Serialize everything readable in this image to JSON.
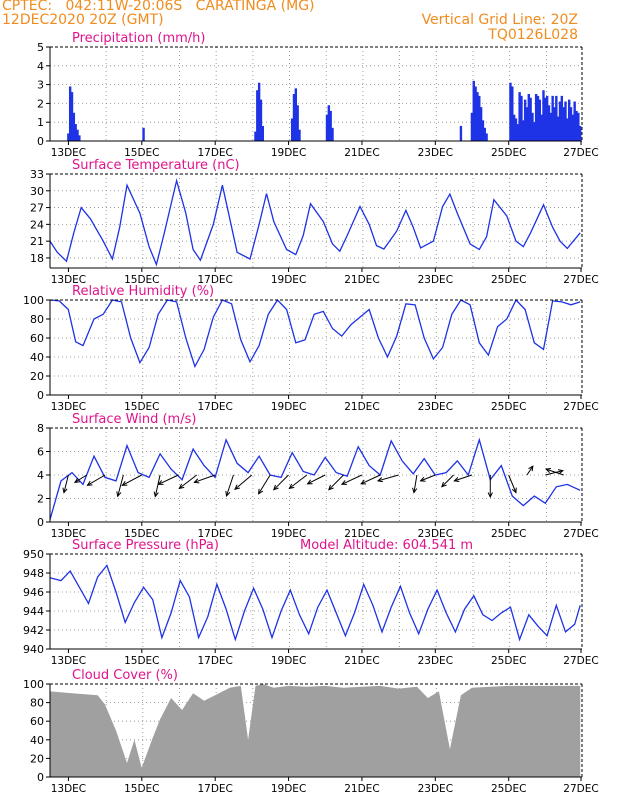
{
  "header": {
    "station_line": "CPTEC:   042:11W-20:06S   CARATINGA (MG)",
    "date_line": "12DEC2020 20Z (GMT)",
    "grid_note": "Vertical Grid Line: 20Z",
    "run_code": "TQ0126L028"
  },
  "colors": {
    "header_text": "#f08c1e",
    "panel_title": "#e0148c",
    "series": "#1e32e6",
    "cloud_fill": "#a0a0a0",
    "wind_arrow": "#000000"
  },
  "x_axis": {
    "ticks": [
      "13DEC",
      "15DEC",
      "17DEC",
      "19DEC",
      "21DEC",
      "23DEC",
      "25DEC",
      "27DEC"
    ],
    "start_label": "12DEC 20Z",
    "span_days": 14.5
  },
  "chart_data": [
    {
      "id": "precip",
      "type": "bar",
      "title": "Precipitation (mm/h)",
      "ylim": [
        0,
        5
      ],
      "yticks": [
        0,
        1,
        2,
        3,
        4,
        5
      ],
      "grid": true,
      "x": [
        0.5,
        0.55,
        0.6,
        0.65,
        0.7,
        0.75,
        0.8,
        2.55,
        5.6,
        5.65,
        5.7,
        5.75,
        5.8,
        6.6,
        6.65,
        6.7,
        6.75,
        6.8,
        7.55,
        7.6,
        7.65,
        7.7,
        11.2,
        11.5,
        11.55,
        11.6,
        11.65,
        11.7,
        11.75,
        11.8,
        11.85,
        11.9,
        12.55,
        12.6,
        12.65,
        12.7,
        12.75,
        12.8,
        12.85,
        12.9,
        12.95,
        13.0,
        13.05,
        13.1,
        13.15,
        13.2,
        13.25,
        13.3,
        13.35,
        13.4,
        13.45,
        13.5,
        13.55,
        13.6,
        13.65,
        13.7,
        13.75,
        13.8,
        13.85,
        13.9,
        13.95,
        14.0,
        14.05,
        14.1,
        14.15,
        14.2,
        14.25,
        14.3,
        14.35,
        14.4,
        14.45
      ],
      "values": [
        0.4,
        2.9,
        2.6,
        1.5,
        0.9,
        0.6,
        0.3,
        0.7,
        0.5,
        2.7,
        3.1,
        2.2,
        0.8,
        1.2,
        2.5,
        2.8,
        1.9,
        0.6,
        1.4,
        1.9,
        1.6,
        0.7,
        0.8,
        1.5,
        3.2,
        2.9,
        2.6,
        2.4,
        1.8,
        1.1,
        0.7,
        0.4,
        3.1,
        2.9,
        1.4,
        1.2,
        0.9,
        2.6,
        2.4,
        1.1,
        2.2,
        1.8,
        2.5,
        2.3,
        1.5,
        1.0,
        2.5,
        2.4,
        2.2,
        1.4,
        2.7,
        2.3,
        2.4,
        1.9,
        1.5,
        2.4,
        1.8,
        2.4,
        1.3,
        2.1,
        2.4,
        1.8,
        2.1,
        1.2,
        2.2,
        1.8,
        1.4,
        2.1,
        1.6,
        1.5,
        0.8
      ]
    },
    {
      "id": "temp",
      "type": "line",
      "title": "Surface Temperature (nC)",
      "ylim": [
        16.2,
        33
      ],
      "yticks": [
        18,
        21,
        24,
        27,
        30,
        33
      ],
      "grid": true,
      "x": [
        0,
        0.2,
        0.45,
        0.65,
        0.85,
        1.1,
        1.45,
        1.7,
        1.9,
        2.1,
        2.45,
        2.7,
        2.9,
        3.1,
        3.45,
        3.7,
        3.9,
        4.1,
        4.45,
        4.7,
        4.9,
        5.1,
        5.45,
        5.7,
        5.9,
        6.1,
        6.45,
        6.7,
        6.9,
        7.1,
        7.45,
        7.7,
        7.9,
        8.1,
        8.45,
        8.7,
        8.9,
        9.1,
        9.45,
        9.7,
        9.9,
        10.1,
        10.45,
        10.7,
        10.9,
        11.1,
        11.45,
        11.7,
        11.9,
        12.1,
        12.45,
        12.7,
        12.9,
        13.1,
        13.45,
        13.7,
        13.9,
        14.1,
        14.45
      ],
      "values": [
        21.0,
        19.0,
        17.4,
        22.5,
        27.0,
        25.0,
        21.0,
        17.8,
        23.5,
        31.0,
        26.0,
        20.0,
        16.8,
        22.0,
        31.8,
        26.0,
        19.5,
        17.6,
        24.0,
        31.0,
        25.0,
        19.0,
        17.8,
        24.0,
        29.5,
        24.5,
        19.5,
        18.6,
        22.0,
        27.7,
        24.5,
        20.5,
        19.2,
        22.0,
        27.2,
        24.0,
        20.2,
        19.6,
        22.8,
        26.5,
        23.5,
        19.8,
        21.0,
        27.2,
        29.4,
        26.0,
        20.5,
        19.5,
        21.8,
        28.4,
        25.5,
        21.0,
        20.0,
        22.5,
        27.5,
        23.5,
        21.0,
        19.7,
        22.5
      ]
    },
    {
      "id": "rh",
      "type": "line",
      "title": "Relative Humidity (%)",
      "ylim": [
        0,
        100
      ],
      "yticks": [
        0,
        20,
        40,
        60,
        80,
        100
      ],
      "grid": true,
      "x": [
        0,
        0.25,
        0.5,
        0.7,
        0.9,
        1.2,
        1.45,
        1.7,
        1.95,
        2.2,
        2.45,
        2.7,
        2.95,
        3.2,
        3.45,
        3.7,
        3.95,
        4.2,
        4.45,
        4.7,
        4.95,
        5.2,
        5.45,
        5.7,
        5.95,
        6.2,
        6.45,
        6.7,
        6.95,
        7.2,
        7.45,
        7.7,
        7.95,
        8.2,
        8.45,
        8.7,
        8.95,
        9.2,
        9.45,
        9.7,
        9.95,
        10.2,
        10.45,
        10.7,
        10.95,
        11.2,
        11.45,
        11.7,
        11.95,
        12.2,
        12.45,
        12.7,
        12.95,
        13.2,
        13.45,
        13.7,
        13.95,
        14.2,
        14.45
      ],
      "values": [
        100,
        99,
        90,
        56,
        52,
        80,
        85,
        100,
        98,
        60,
        34,
        50,
        85,
        100,
        98,
        60,
        30,
        48,
        82,
        100,
        96,
        58,
        35,
        52,
        85,
        100,
        90,
        55,
        58,
        85,
        88,
        70,
        62,
        74,
        82,
        90,
        60,
        40,
        62,
        96,
        95,
        60,
        38,
        50,
        85,
        100,
        95,
        55,
        42,
        72,
        80,
        100,
        90,
        55,
        48,
        99,
        98,
        95,
        98
      ]
    },
    {
      "id": "wind",
      "type": "line",
      "title": "Surface Wind (m/s)",
      "ylim": [
        0,
        8
      ],
      "yticks": [
        0,
        2,
        4,
        6,
        8
      ],
      "grid": true,
      "x": [
        0,
        0.3,
        0.6,
        0.9,
        1.2,
        1.5,
        1.8,
        2.1,
        2.4,
        2.7,
        3.0,
        3.3,
        3.6,
        3.9,
        4.2,
        4.5,
        4.8,
        5.1,
        5.4,
        5.7,
        6.0,
        6.3,
        6.6,
        6.9,
        7.2,
        7.5,
        7.8,
        8.1,
        8.4,
        8.7,
        9.0,
        9.3,
        9.6,
        9.9,
        10.2,
        10.5,
        10.8,
        11.1,
        11.4,
        11.7,
        12.0,
        12.3,
        12.6,
        12.9,
        13.2,
        13.5,
        13.8,
        14.1,
        14.45
      ],
      "values": [
        0.2,
        3.5,
        4.2,
        3.2,
        5.6,
        3.8,
        3.5,
        6.5,
        4.2,
        3.8,
        5.8,
        4.5,
        3.6,
        6.2,
        4.8,
        3.8,
        7.0,
        5.0,
        4.2,
        5.6,
        4.0,
        3.8,
        5.9,
        4.3,
        4.0,
        5.5,
        4.2,
        3.9,
        6.4,
        4.8,
        4.0,
        6.9,
        5.2,
        4.1,
        5.4,
        4.0,
        4.2,
        5.2,
        4.0,
        7.0,
        3.6,
        4.8,
        2.2,
        1.4,
        2.2,
        1.6,
        3.0,
        3.2,
        2.7
      ],
      "arrows": {
        "x": [
          0.5,
          1.0,
          1.5,
          2.0,
          2.5,
          3.0,
          3.5,
          4.0,
          4.5,
          5.0,
          5.5,
          6.0,
          6.5,
          7.0,
          7.5,
          8.0,
          8.5,
          9.0,
          9.5,
          10.0,
          10.5,
          11.0,
          11.5,
          12.0,
          12.5,
          13.0,
          13.5,
          14.0
        ],
        "y": [
          4.0,
          4.0,
          4.0,
          4.0,
          4.0,
          4.0,
          4.0,
          4.0,
          4.0,
          4.0,
          4.0,
          4.0,
          4.0,
          4.0,
          4.0,
          4.0,
          4.0,
          4.0,
          4.0,
          4.0,
          4.0,
          4.0,
          4.0,
          4.0,
          4.0,
          4.0,
          4.0,
          4.0
        ],
        "u": [
          -0.3,
          -0.8,
          -1.2,
          -0.4,
          -1.5,
          -0.4,
          -1.5,
          -1.3,
          -1.7,
          -0.5,
          -1.3,
          -0.8,
          -1.0,
          -1.3,
          -1.2,
          -1.0,
          -1.5,
          -1.3,
          -1.4,
          -0.2,
          -1.0,
          -0.8,
          -1.2,
          0,
          0.5,
          0.4,
          1.2,
          -1.2
        ],
        "v": [
          -1.2,
          -0.5,
          -0.7,
          -1.5,
          -0.8,
          -1.8,
          -0.7,
          -1.0,
          -0.6,
          -1.5,
          -1.1,
          -1.3,
          -1.0,
          -1.0,
          -0.6,
          -1.0,
          -0.7,
          -0.6,
          -0.4,
          -1.2,
          -0.4,
          -0.8,
          -0.4,
          -2.0,
          -1.2,
          0.6,
          0.3,
          0.4
        ]
      }
    },
    {
      "id": "pressure",
      "type": "line",
      "title": "Surface Pressure (hPa)",
      "annotation": "Model Altitude: 604.541 m",
      "ylim": [
        940,
        950
      ],
      "yticks": [
        940,
        942,
        944,
        946,
        948,
        950
      ],
      "grid": true,
      "x": [
        0,
        0.3,
        0.55,
        0.8,
        1.05,
        1.3,
        1.55,
        1.8,
        2.05,
        2.3,
        2.55,
        2.8,
        3.05,
        3.3,
        3.55,
        3.8,
        4.05,
        4.3,
        4.55,
        4.8,
        5.05,
        5.3,
        5.55,
        5.8,
        6.05,
        6.3,
        6.55,
        6.8,
        7.05,
        7.3,
        7.55,
        7.8,
        8.05,
        8.3,
        8.55,
        8.8,
        9.05,
        9.3,
        9.55,
        9.8,
        10.05,
        10.3,
        10.55,
        10.8,
        11.05,
        11.3,
        11.55,
        11.8,
        12.05,
        12.3,
        12.55,
        12.8,
        13.05,
        13.3,
        13.55,
        13.8,
        14.05,
        14.3,
        14.45
      ],
      "values": [
        947.5,
        947.2,
        948.2,
        946.5,
        944.8,
        947.6,
        948.8,
        946.0,
        942.8,
        944.9,
        946.5,
        945.2,
        941.2,
        943.8,
        947.2,
        945.5,
        941.2,
        943.4,
        946.8,
        944.2,
        941.0,
        944.0,
        946.4,
        944.2,
        941.2,
        944.0,
        946.2,
        943.6,
        941.6,
        944.4,
        946.2,
        943.8,
        941.4,
        943.8,
        946.8,
        944.6,
        941.8,
        944.4,
        946.6,
        943.8,
        941.6,
        944.2,
        946.2,
        943.8,
        941.8,
        944.2,
        945.6,
        943.6,
        943.0,
        943.8,
        944.4,
        941.0,
        943.6,
        942.4,
        941.4,
        944.6,
        941.8,
        942.6,
        944.6
      ]
    },
    {
      "id": "cloud",
      "type": "area",
      "title": "Cloud Cover (%)",
      "ylim": [
        0,
        100
      ],
      "yticks": [
        0,
        20,
        40,
        60,
        80,
        100
      ],
      "grid": true,
      "x": [
        0,
        0.6,
        1.3,
        1.5,
        1.8,
        2.1,
        2.3,
        2.5,
        2.8,
        3.0,
        3.3,
        3.6,
        3.9,
        4.2,
        4.5,
        4.9,
        5.2,
        5.4,
        5.6,
        5.8,
        6.1,
        6.5,
        7.0,
        7.5,
        8.0,
        8.5,
        9.0,
        9.5,
        10.0,
        10.3,
        10.6,
        10.9,
        11.2,
        11.5,
        12.0,
        12.5,
        13.0,
        13.5,
        14.0,
        14.45
      ],
      "values": [
        92,
        90,
        88,
        78,
        50,
        15,
        40,
        10,
        42,
        62,
        85,
        72,
        90,
        82,
        88,
        96,
        98,
        40,
        98,
        100,
        96,
        98,
        97,
        98,
        96,
        97,
        98,
        95,
        97,
        85,
        92,
        30,
        88,
        96,
        97,
        98,
        98,
        98,
        98,
        98
      ]
    }
  ]
}
